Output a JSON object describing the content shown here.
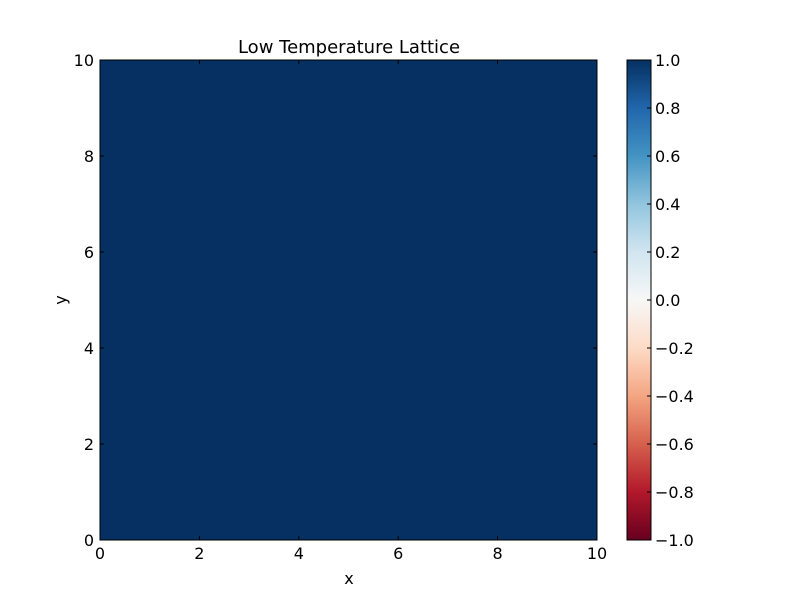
{
  "chart_data": {
    "type": "heatmap",
    "title": "Low Temperature Lattice",
    "xlabel": "x",
    "ylabel": "y",
    "xlim": [
      0,
      10
    ],
    "ylim": [
      0,
      10
    ],
    "x_ticks": [
      0,
      2,
      4,
      6,
      8,
      10
    ],
    "y_ticks": [
      0,
      2,
      4,
      6,
      8,
      10
    ],
    "x_tick_labels": [
      "0",
      "2",
      "4",
      "6",
      "8",
      "10"
    ],
    "y_tick_labels": [
      "0",
      "2",
      "4",
      "6",
      "8",
      "10"
    ],
    "grid": false,
    "colormap": "RdBu",
    "vmin": -1.0,
    "vmax": 1.0,
    "colorbar_ticks": [
      -1.0,
      -0.8,
      -0.6,
      -0.4,
      -0.2,
      0.0,
      0.2,
      0.4,
      0.6,
      0.8,
      1.0
    ],
    "colorbar_tick_labels": [
      "−1.0",
      "−0.8",
      "−0.6",
      "−0.4",
      "−0.2",
      "0.0",
      "0.2",
      "0.4",
      "0.6",
      "0.8",
      "1.0"
    ],
    "colormap_stops": [
      {
        "value": -1.0,
        "color": "#67001f"
      },
      {
        "value": -0.8,
        "color": "#b2182b"
      },
      {
        "value": -0.6,
        "color": "#d6604d"
      },
      {
        "value": -0.4,
        "color": "#f4a582"
      },
      {
        "value": -0.2,
        "color": "#fddbc7"
      },
      {
        "value": 0.0,
        "color": "#f7f7f7"
      },
      {
        "value": 0.2,
        "color": "#d1e5f0"
      },
      {
        "value": 0.4,
        "color": "#92c5de"
      },
      {
        "value": 0.6,
        "color": "#4393c3"
      },
      {
        "value": 0.8,
        "color": "#2166ac"
      },
      {
        "value": 1.0,
        "color": "#053061"
      }
    ],
    "values": [
      [
        1,
        1,
        1,
        1,
        1,
        1,
        1,
        1,
        1,
        1
      ],
      [
        1,
        1,
        1,
        1,
        1,
        1,
        1,
        1,
        1,
        1
      ],
      [
        1,
        1,
        1,
        1,
        1,
        1,
        1,
        1,
        1,
        1
      ],
      [
        1,
        1,
        1,
        1,
        1,
        1,
        1,
        1,
        1,
        1
      ],
      [
        1,
        1,
        1,
        1,
        1,
        1,
        1,
        1,
        1,
        1
      ],
      [
        1,
        1,
        1,
        1,
        1,
        1,
        1,
        1,
        1,
        1
      ],
      [
        1,
        1,
        1,
        1,
        1,
        1,
        1,
        1,
        1,
        1
      ],
      [
        1,
        1,
        1,
        1,
        1,
        1,
        1,
        1,
        1,
        1
      ],
      [
        1,
        1,
        1,
        1,
        1,
        1,
        1,
        1,
        1,
        1
      ],
      [
        1,
        1,
        1,
        1,
        1,
        1,
        1,
        1,
        1,
        1
      ]
    ]
  }
}
